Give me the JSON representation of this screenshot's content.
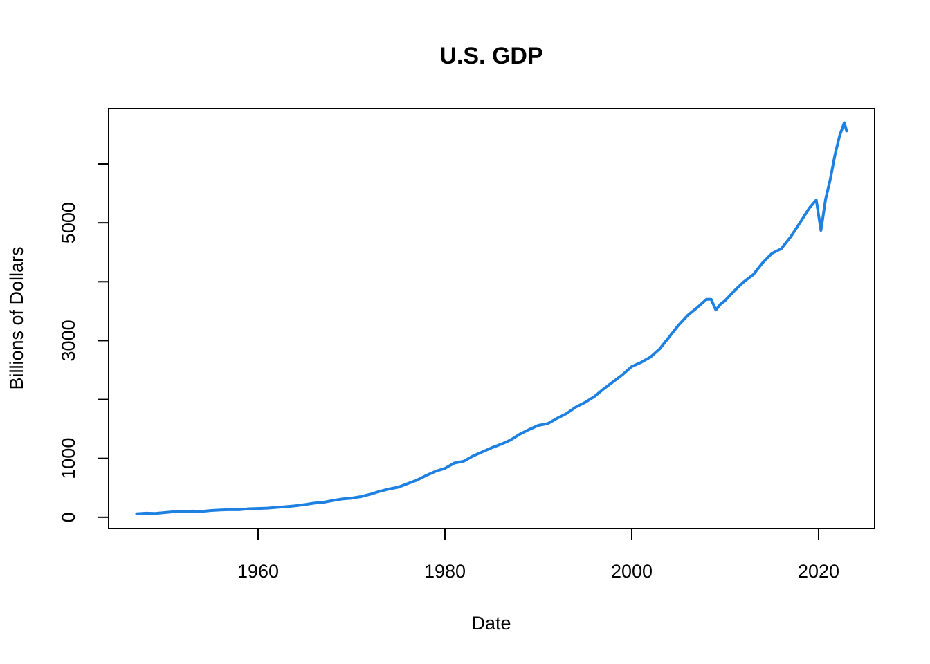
{
  "chart_data": {
    "type": "line",
    "title": "U.S. GDP",
    "xlabel": "Date",
    "ylabel": "Billions of Dollars",
    "xlim": [
      1944,
      2026
    ],
    "ylim": [
      -190,
      6940
    ],
    "x_ticks": [
      1960,
      1980,
      2000,
      2020
    ],
    "x_tick_labels": [
      "1960",
      "1980",
      "2000",
      "2020"
    ],
    "y_ticks": [
      0,
      1000,
      2000,
      3000,
      4000,
      5000,
      6000
    ],
    "y_tick_labels": [
      "0",
      "1000",
      "",
      "3000",
      "",
      "5000",
      ""
    ],
    "grid": false,
    "legend": "none",
    "series": [
      {
        "color": "#1e80e0",
        "x": [
          1947,
          1948,
          1949,
          1950,
          1951,
          1952,
          1953,
          1954,
          1955,
          1956,
          1957,
          1958,
          1959,
          1960,
          1961,
          1962,
          1963,
          1964,
          1965,
          1966,
          1967,
          1968,
          1969,
          1970,
          1971,
          1972,
          1973,
          1974,
          1975,
          1976,
          1977,
          1978,
          1979,
          1980,
          1981,
          1982,
          1983,
          1984,
          1985,
          1986,
          1987,
          1988,
          1989,
          1990,
          1991,
          1992,
          1993,
          1994,
          1995,
          1996,
          1997,
          1998,
          1999,
          2000,
          2001,
          2002,
          2003,
          2004,
          2005,
          2006,
          2007,
          2008,
          2008.5,
          2009,
          2009.5,
          2010,
          2011,
          2012,
          2013,
          2014,
          2015,
          2016,
          2017,
          2018,
          2019,
          2019.75,
          2020.25,
          2020.75,
          2021.25,
          2021.75,
          2022.25,
          2022.75,
          2023
        ],
        "y": [
          60,
          70,
          65,
          80,
          95,
          100,
          105,
          100,
          115,
          125,
          130,
          128,
          145,
          150,
          155,
          168,
          180,
          195,
          215,
          240,
          255,
          285,
          310,
          325,
          350,
          390,
          440,
          480,
          510,
          570,
          630,
          710,
          780,
          830,
          920,
          950,
          1040,
          1110,
          1180,
          1240,
          1310,
          1410,
          1490,
          1560,
          1590,
          1680,
          1760,
          1870,
          1950,
          2050,
          2180,
          2300,
          2420,
          2560,
          2630,
          2720,
          2860,
          3060,
          3260,
          3430,
          3560,
          3700,
          3700,
          3520,
          3620,
          3680,
          3850,
          4000,
          4120,
          4320,
          4480,
          4560,
          4760,
          5000,
          5250,
          5390,
          4870,
          5400,
          5740,
          6150,
          6480,
          6700,
          6560
        ]
      }
    ]
  }
}
